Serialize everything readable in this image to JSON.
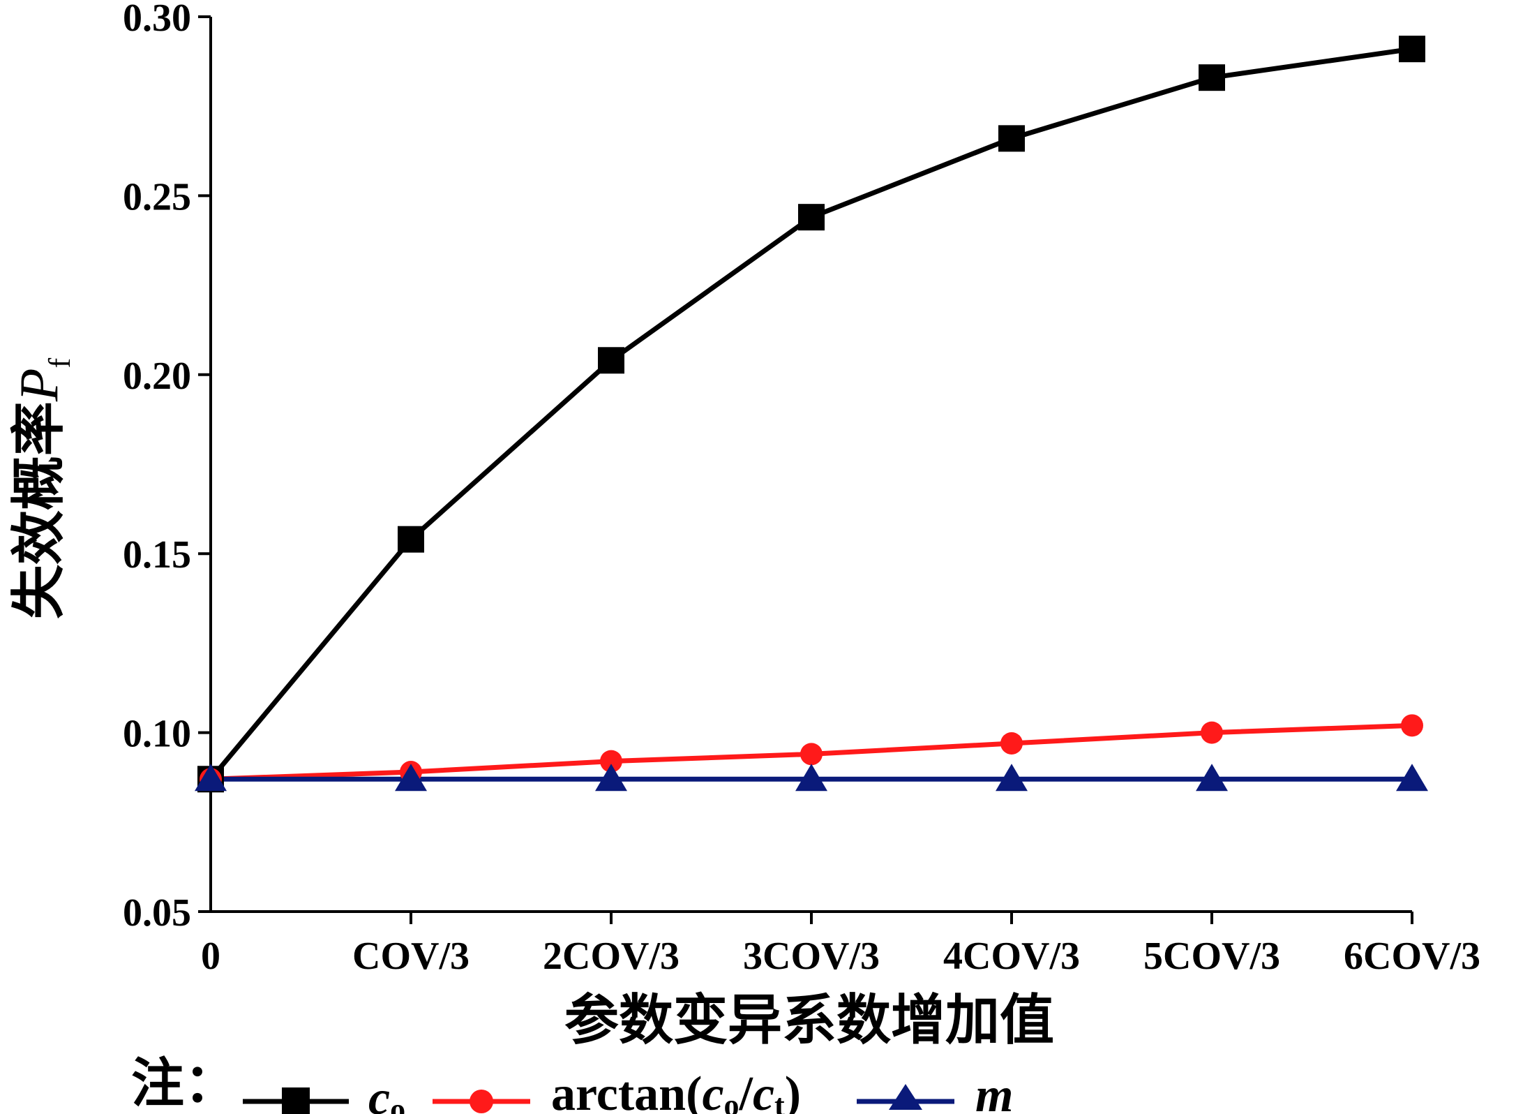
{
  "chart_data": {
    "type": "line",
    "categories": [
      "0",
      "COV/3",
      "2COV/3",
      "3COV/3",
      "4COV/3",
      "5COV/3",
      "6COV/3"
    ],
    "xlabel": "参数变异系数增加值",
    "ylabel": "失效概率",
    "ylabel_symbol": "P",
    "ylabel_sub": "f",
    "ylim": [
      0.05,
      0.3
    ],
    "yticks": [
      0.05,
      0.1,
      0.15,
      0.2,
      0.25,
      0.3
    ],
    "ytick_labels": [
      "0.05",
      "0.10",
      "0.15",
      "0.20",
      "0.25",
      "0.30"
    ],
    "grid": false,
    "legend_position": "bottom",
    "legend_note": "注：",
    "series": [
      {
        "name": "c",
        "name_sub": "o",
        "color": "#000000",
        "marker": "square",
        "values": [
          0.087,
          0.154,
          0.204,
          0.244,
          0.266,
          0.283,
          0.291
        ]
      },
      {
        "name": "arctan(c/c)",
        "name_parts": [
          "arctan(",
          "c",
          "o",
          "/",
          "c",
          "t",
          ")"
        ],
        "color": "#ff1a1a",
        "marker": "circle",
        "values": [
          0.087,
          0.089,
          0.092,
          0.094,
          0.097,
          0.1,
          0.102
        ]
      },
      {
        "name": "m",
        "color": "#0a1a7a",
        "marker": "triangle",
        "values": [
          0.087,
          0.087,
          0.087,
          0.087,
          0.087,
          0.087,
          0.087
        ]
      }
    ]
  }
}
